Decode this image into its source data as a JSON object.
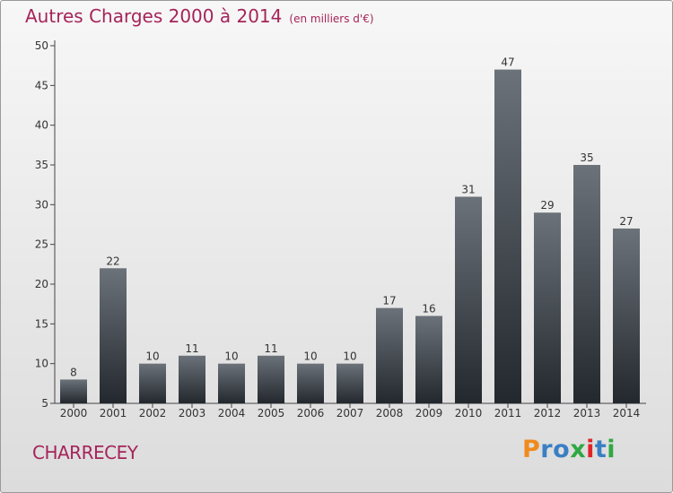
{
  "title": {
    "main": "Autres Charges 2000 à 2014",
    "unit": "(en milliers d'€)"
  },
  "commune": "CHARRECEY",
  "logo": {
    "text": "Proxiti",
    "letters": [
      "P",
      "r",
      "o",
      "x",
      "i",
      "t",
      "i"
    ],
    "colors": [
      "#f08a1e",
      "#3a7fc4",
      "#3a7fc4",
      "#2fa843",
      "#e0242a",
      "#3a7fc4",
      "#2fa843"
    ]
  },
  "colors": {
    "title": "#a5245a",
    "bar_top": "#6c727a",
    "bar_bottom": "#23282e",
    "axis": "#444444"
  },
  "chart_data": {
    "type": "bar",
    "title": "Autres Charges 2000 à 2014",
    "subtitle": "(en milliers d'€)",
    "categories": [
      "2000",
      "2001",
      "2002",
      "2003",
      "2004",
      "2005",
      "2006",
      "2007",
      "2008",
      "2009",
      "2010",
      "2011",
      "2012",
      "2013",
      "2014"
    ],
    "values": [
      8,
      22,
      10,
      11,
      10,
      11,
      10,
      10,
      17,
      16,
      31,
      47,
      29,
      35,
      27
    ],
    "ylim": [
      5,
      50
    ],
    "yticks": [
      5,
      10,
      15,
      20,
      25,
      30,
      35,
      40,
      45,
      50
    ],
    "grid": false,
    "data_labels": true
  }
}
